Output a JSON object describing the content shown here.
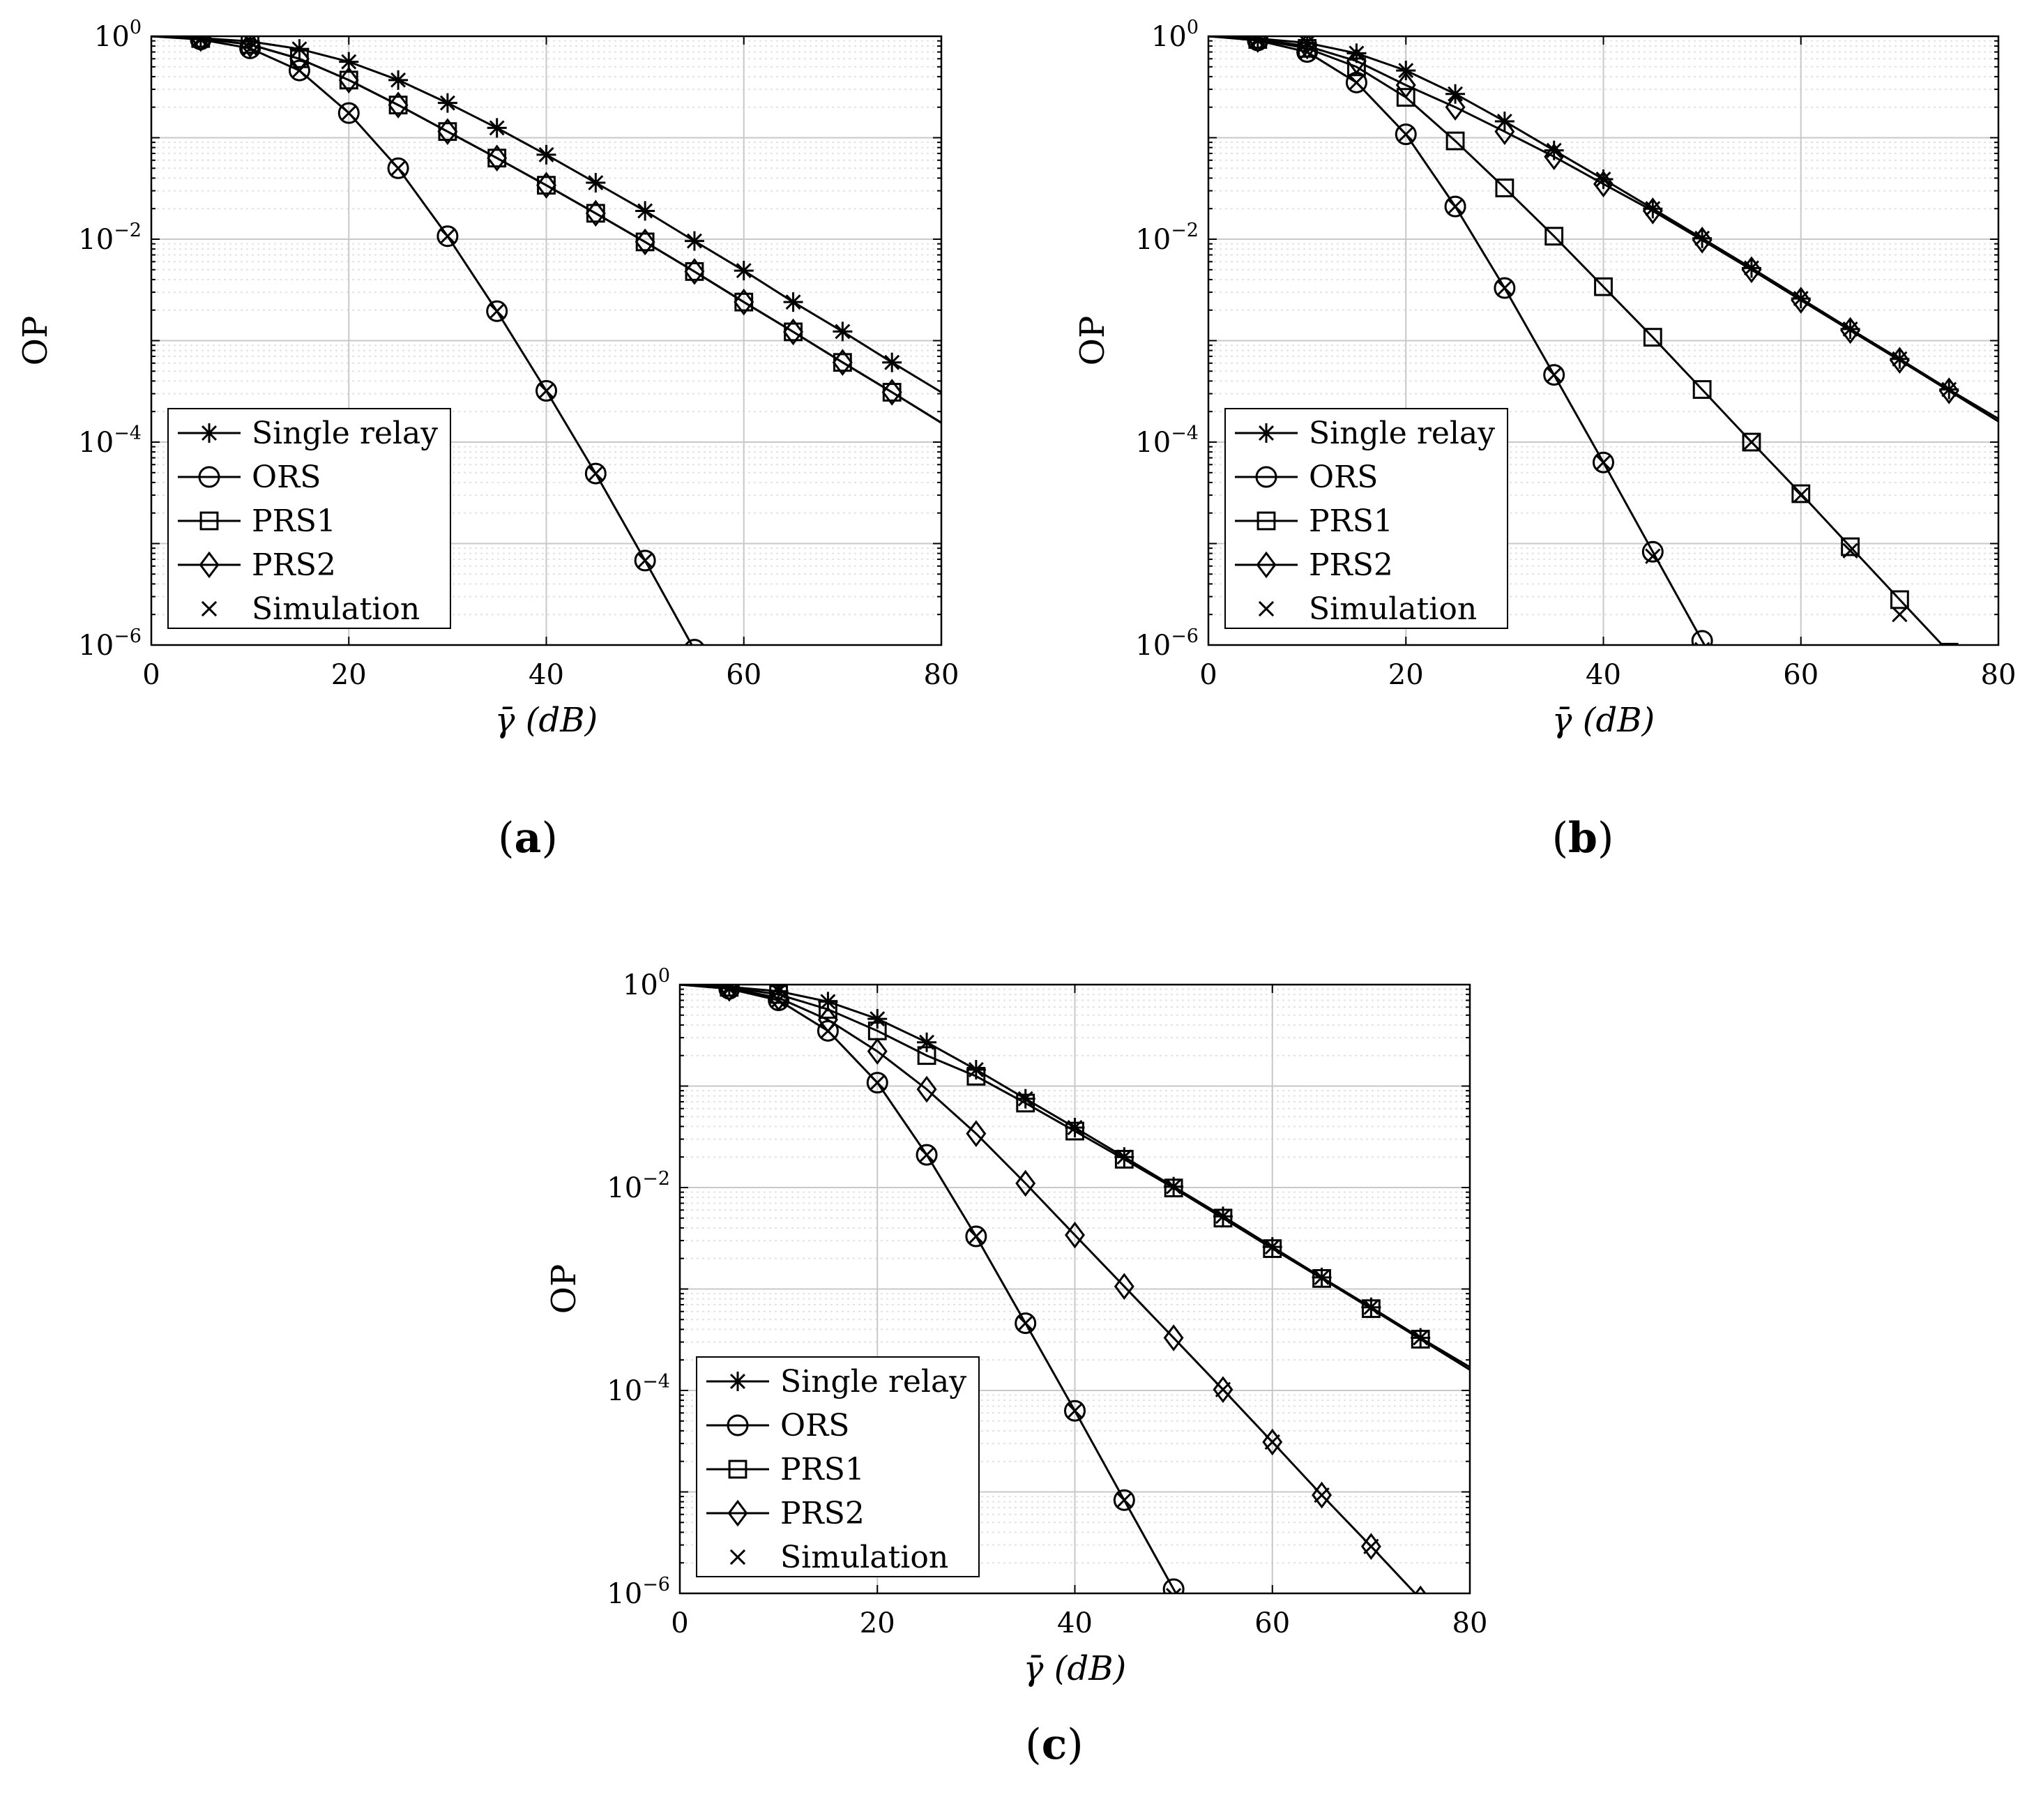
{
  "chart_data": [
    {
      "type": "line",
      "panel": "a",
      "caption": "(a)",
      "caption_letter": "a",
      "xlabel": "γ̄ (dB)",
      "ylabel": "OP",
      "xlim": [
        0,
        80
      ],
      "ylim": [
        1e-06,
        1
      ],
      "yscale": "log",
      "grid": true,
      "xticks": [
        0,
        20,
        40,
        60,
        80
      ],
      "yticks": [
        {
          "base": "10",
          "exp": "0",
          "value": 1
        },
        {
          "base": "10",
          "exp": "−2",
          "value": 0.01
        },
        {
          "base": "10",
          "exp": "−4",
          "value": 0.0001
        },
        {
          "base": "10",
          "exp": "−6",
          "value": 1e-06
        }
      ],
      "legend_position": "bottom-left",
      "legend": [
        "Single relay",
        "ORS",
        "PRS1",
        "PRS2",
        "Simulation"
      ],
      "series": [
        {
          "name": "Single relay",
          "marker": "star",
          "x": [
            0,
            5,
            10,
            15,
            20,
            25,
            30,
            35,
            40,
            45,
            50,
            55,
            60,
            65,
            70,
            75,
            80
          ],
          "y": [
            1,
            0.96,
            0.89,
            0.75,
            0.56,
            0.37,
            0.22,
            0.125,
            0.068,
            0.036,
            0.019,
            0.0096,
            0.0049,
            0.0024,
            0.00123,
            0.00061,
            0.00031
          ]
        },
        {
          "name": "ORS",
          "marker": "circle",
          "x": [
            0,
            5,
            10,
            15,
            20,
            25,
            30,
            35,
            40,
            45,
            50,
            55
          ],
          "y": [
            1,
            0.93,
            0.76,
            0.46,
            0.175,
            0.05,
            0.0107,
            0.00195,
            0.00032,
            4.9e-05,
            6.8e-06,
            9e-07
          ]
        },
        {
          "name": "PRS1",
          "marker": "square",
          "x": [
            0,
            5,
            10,
            15,
            20,
            25,
            30,
            35,
            40,
            45,
            50,
            55,
            60,
            65,
            70,
            75,
            80
          ],
          "y": [
            1,
            0.95,
            0.83,
            0.6,
            0.37,
            0.21,
            0.115,
            0.063,
            0.034,
            0.018,
            0.0094,
            0.0048,
            0.0024,
            0.00122,
            0.00061,
            0.00031,
            0.000155
          ]
        },
        {
          "name": "PRS2",
          "marker": "diamond",
          "x": [
            0,
            5,
            10,
            15,
            20,
            25,
            30,
            35,
            40,
            45,
            50,
            55,
            60,
            65,
            70,
            75,
            80
          ],
          "y": [
            1,
            0.95,
            0.83,
            0.6,
            0.37,
            0.21,
            0.115,
            0.063,
            0.034,
            0.018,
            0.0094,
            0.0048,
            0.0024,
            0.00122,
            0.00061,
            0.00031,
            0.000155
          ]
        },
        {
          "name": "Simulation",
          "marker": "x",
          "x": [
            5,
            10,
            15,
            20,
            25,
            30,
            35,
            40,
            45,
            50
          ],
          "y": [
            0.93,
            0.76,
            0.46,
            0.175,
            0.05,
            0.0107,
            0.00195,
            0.00032,
            4.9e-05,
            6.8e-06
          ]
        }
      ]
    },
    {
      "type": "line",
      "panel": "b",
      "caption": "(b)",
      "caption_letter": "b",
      "xlabel": "γ̄ (dB)",
      "ylabel": "OP",
      "xlim": [
        0,
        80
      ],
      "ylim": [
        1e-06,
        1
      ],
      "yscale": "log",
      "grid": true,
      "xticks": [
        0,
        20,
        40,
        60,
        80
      ],
      "yticks": [
        {
          "base": "10",
          "exp": "0",
          "value": 1
        },
        {
          "base": "10",
          "exp": "−2",
          "value": 0.01
        },
        {
          "base": "10",
          "exp": "−4",
          "value": 0.0001
        },
        {
          "base": "10",
          "exp": "−6",
          "value": 1e-06
        }
      ],
      "legend_position": "bottom-left",
      "legend": [
        "Single relay",
        "ORS",
        "PRS1",
        "PRS2",
        "Simulation"
      ],
      "series": [
        {
          "name": "Single relay",
          "marker": "star",
          "x": [
            0,
            5,
            10,
            15,
            20,
            25,
            30,
            35,
            40,
            45,
            50,
            55,
            60,
            65,
            70,
            75,
            80
          ],
          "y": [
            1,
            0.95,
            0.86,
            0.68,
            0.46,
            0.27,
            0.145,
            0.075,
            0.039,
            0.02,
            0.0102,
            0.0052,
            0.0026,
            0.0013,
            0.00066,
            0.00033,
            0.00017
          ]
        },
        {
          "name": "ORS",
          "marker": "circle",
          "x": [
            0,
            5,
            10,
            15,
            20,
            25,
            30,
            35,
            40,
            45,
            50,
            52
          ],
          "y": [
            1,
            0.91,
            0.7,
            0.35,
            0.108,
            0.021,
            0.0033,
            0.00046,
            6.3e-05,
            8.3e-06,
            1.1e-06,
            5e-07
          ]
        },
        {
          "name": "PRS1",
          "marker": "square",
          "x": [
            0,
            5,
            10,
            15,
            20,
            25,
            30,
            35,
            40,
            45,
            50,
            55,
            60,
            65,
            70,
            75
          ],
          "y": [
            1,
            0.93,
            0.76,
            0.5,
            0.25,
            0.093,
            0.032,
            0.0107,
            0.0034,
            0.00108,
            0.00033,
            0.0001,
            3.1e-05,
            9.3e-06,
            2.8e-06,
            8.5e-07
          ]
        },
        {
          "name": "PRS2",
          "marker": "diamond",
          "x": [
            0,
            5,
            10,
            15,
            20,
            25,
            30,
            35,
            40,
            45,
            50,
            55,
            60,
            65,
            70,
            75,
            80
          ],
          "y": [
            1,
            0.93,
            0.8,
            0.57,
            0.33,
            0.2,
            0.115,
            0.065,
            0.035,
            0.019,
            0.0098,
            0.005,
            0.0025,
            0.00126,
            0.00064,
            0.00032,
            0.00016
          ]
        },
        {
          "name": "Simulation",
          "marker": "x",
          "x": [
            5,
            10,
            15,
            20,
            25,
            30,
            35,
            40,
            45,
            50,
            55,
            60,
            65,
            70
          ],
          "y": [
            0.91,
            0.7,
            0.35,
            0.108,
            0.021,
            0.0033,
            0.00046,
            6.3e-05,
            7.5e-06,
            9e-07,
            0.0001,
            3e-05,
            8.5e-06,
            2e-06
          ]
        }
      ]
    },
    {
      "type": "line",
      "panel": "c",
      "caption": "(c)",
      "caption_letter": "c",
      "xlabel": "γ̄ (dB)",
      "ylabel": "OP",
      "xlim": [
        0,
        80
      ],
      "ylim": [
        1e-06,
        1
      ],
      "yscale": "log",
      "grid": true,
      "xticks": [
        0,
        20,
        40,
        60,
        80
      ],
      "yticks": [
        {
          "base": "10",
          "exp": "0",
          "value": 1
        },
        {
          "base": "10",
          "exp": "−2",
          "value": 0.01
        },
        {
          "base": "10",
          "exp": "−4",
          "value": 0.0001
        },
        {
          "base": "10",
          "exp": "−6",
          "value": 1e-06
        }
      ],
      "legend_position": "bottom-left",
      "legend": [
        "Single relay",
        "ORS",
        "PRS1",
        "PRS2",
        "Simulation"
      ],
      "series": [
        {
          "name": "Single relay",
          "marker": "star",
          "x": [
            0,
            5,
            10,
            15,
            20,
            25,
            30,
            35,
            40,
            45,
            50,
            55,
            60,
            65,
            70,
            75,
            80
          ],
          "y": [
            1,
            0.95,
            0.86,
            0.68,
            0.46,
            0.27,
            0.145,
            0.075,
            0.039,
            0.02,
            0.0102,
            0.0052,
            0.0026,
            0.0013,
            0.00066,
            0.00033,
            0.00017
          ]
        },
        {
          "name": "ORS",
          "marker": "circle",
          "x": [
            0,
            5,
            10,
            15,
            20,
            25,
            30,
            35,
            40,
            45,
            50,
            52
          ],
          "y": [
            1,
            0.91,
            0.7,
            0.35,
            0.108,
            0.021,
            0.0033,
            0.00046,
            6.3e-05,
            8.3e-06,
            1.1e-06,
            5e-07
          ]
        },
        {
          "name": "PRS1",
          "marker": "square",
          "x": [
            0,
            5,
            10,
            15,
            20,
            25,
            30,
            35,
            40,
            45,
            50,
            55,
            60,
            65,
            70,
            75,
            80
          ],
          "y": [
            1,
            0.94,
            0.8,
            0.57,
            0.35,
            0.2,
            0.125,
            0.068,
            0.036,
            0.019,
            0.0099,
            0.005,
            0.0025,
            0.00127,
            0.00064,
            0.00032,
            0.00016
          ]
        },
        {
          "name": "PRS2",
          "marker": "diamond",
          "x": [
            0,
            5,
            10,
            15,
            20,
            25,
            30,
            35,
            40,
            45,
            50,
            55,
            60,
            65,
            70,
            75
          ],
          "y": [
            1,
            0.92,
            0.74,
            0.45,
            0.22,
            0.093,
            0.034,
            0.011,
            0.0034,
            0.00106,
            0.00033,
            0.000102,
            3.1e-05,
            9.3e-06,
            2.9e-06,
            8.8e-07
          ]
        },
        {
          "name": "Simulation",
          "marker": "x",
          "x": [
            5,
            10,
            15,
            20,
            25,
            30,
            35,
            40,
            45,
            50,
            55,
            60,
            65,
            70
          ],
          "y": [
            0.91,
            0.7,
            0.35,
            0.108,
            0.021,
            0.0033,
            0.00046,
            6.3e-05,
            8.3e-06,
            9.5e-07,
            0.000102,
            3.1e-05,
            9.3e-06,
            2.9e-06
          ]
        }
      ]
    }
  ]
}
